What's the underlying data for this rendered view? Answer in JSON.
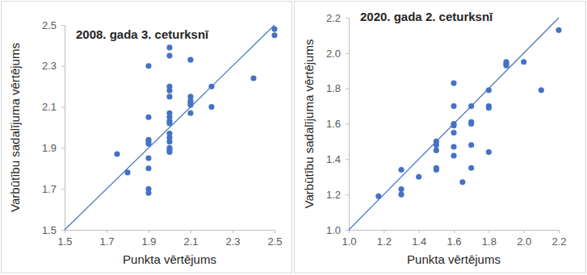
{
  "chart_data": [
    {
      "type": "scatter",
      "title": "2008. gada 3. ceturksnī",
      "x_label": "Punkta vērtējums",
      "y_label": "Varbūtību sadalījuma vērtējums",
      "xlim": [
        1.5,
        2.5
      ],
      "xticks": [
        1.5,
        1.7,
        1.9,
        2.1,
        2.3,
        2.5
      ],
      "ylim": [
        1.5,
        2.5
      ],
      "yticks": [
        1.5,
        1.7,
        1.9,
        2.1,
        2.3,
        2.5
      ],
      "grid": false,
      "series": [
        {
          "type": "scatter",
          "color": "#4472c4",
          "marker": "circle",
          "x": [
            1.75,
            1.8,
            1.9,
            1.9,
            1.9,
            1.9,
            1.9,
            1.9,
            1.9,
            1.9,
            1.9,
            2.0,
            2.0,
            2.0,
            2.0,
            2.0,
            2.0,
            2.0,
            2.0,
            2.0,
            2.0,
            2.0,
            2.0,
            2.0,
            2.0,
            2.0,
            2.1,
            2.1,
            2.1,
            2.1,
            2.1,
            2.1,
            2.2,
            2.2,
            2.4,
            2.5,
            2.5
          ],
          "values": [
            1.87,
            1.78,
            2.3,
            2.05,
            1.94,
            1.93,
            1.92,
            1.85,
            1.8,
            1.7,
            1.68,
            2.39,
            2.35,
            2.2,
            2.18,
            2.15,
            2.07,
            2.05,
            2.03,
            2.02,
            1.97,
            1.95,
            1.93,
            1.9,
            1.89,
            1.88,
            2.33,
            2.15,
            2.13,
            2.12,
            2.11,
            2.07,
            2.2,
            2.1,
            2.24,
            2.48,
            2.45
          ]
        },
        {
          "type": "line",
          "color": "#4472c4",
          "line_style": "solid",
          "x": [
            1.5,
            2.5
          ],
          "values": [
            1.5,
            2.5
          ]
        }
      ]
    },
    {
      "type": "scatter",
      "title": "2020. gada 2. ceturksnī",
      "x_label": "Punkta vērtējums",
      "y_label": "Varbūtību sadalījuma vērtējums",
      "xlim": [
        1.0,
        2.2
      ],
      "xticks": [
        {
          "value": 1.0,
          "label": "1.0"
        },
        1.2,
        1.4,
        1.6,
        1.8,
        {
          "value": 2.0,
          "label": "2.0"
        },
        2.2
      ],
      "ylim": [
        1.0,
        2.2
      ],
      "yticks": [
        {
          "value": 1.0,
          "label": "1.0"
        },
        1.2,
        1.4,
        1.6,
        1.8,
        {
          "value": 2.0,
          "label": "2.0"
        },
        2.2
      ],
      "grid": false,
      "series": [
        {
          "type": "scatter",
          "color": "#4472c4",
          "marker": "circle",
          "x": [
            1.17,
            1.3,
            1.3,
            1.3,
            1.4,
            1.5,
            1.5,
            1.5,
            1.5,
            1.5,
            1.6,
            1.6,
            1.6,
            1.6,
            1.6,
            1.6,
            1.6,
            1.65,
            1.7,
            1.7,
            1.7,
            1.7,
            1.7,
            1.8,
            1.8,
            1.8,
            1.8,
            1.9,
            1.9,
            1.9,
            2.0,
            2.1,
            2.2
          ],
          "values": [
            1.19,
            1.34,
            1.23,
            1.2,
            1.3,
            1.5,
            1.48,
            1.45,
            1.35,
            1.34,
            1.83,
            1.7,
            1.6,
            1.59,
            1.55,
            1.47,
            1.42,
            1.27,
            1.7,
            1.61,
            1.6,
            1.48,
            1.35,
            1.79,
            1.7,
            1.69,
            1.44,
            1.95,
            1.94,
            1.93,
            1.95,
            1.79,
            2.13
          ]
        },
        {
          "type": "line",
          "color": "#4472c4",
          "line_style": "solid",
          "x": [
            1.0,
            2.2
          ],
          "values": [
            1.0,
            2.2
          ]
        }
      ]
    }
  ]
}
